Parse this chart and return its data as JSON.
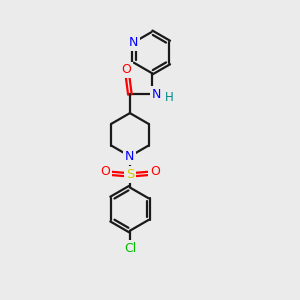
{
  "background_color": "#ebebeb",
  "bond_color": "#1a1a1a",
  "N_color": "#0000ff",
  "O_color": "#ff0000",
  "S_color": "#cccc00",
  "Cl_color": "#00bb00",
  "H_color": "#008888",
  "line_width": 1.6,
  "figsize": [
    3.0,
    3.0
  ],
  "dpi": 100,
  "xlim": [
    0,
    10
  ],
  "ylim": [
    0,
    10
  ]
}
